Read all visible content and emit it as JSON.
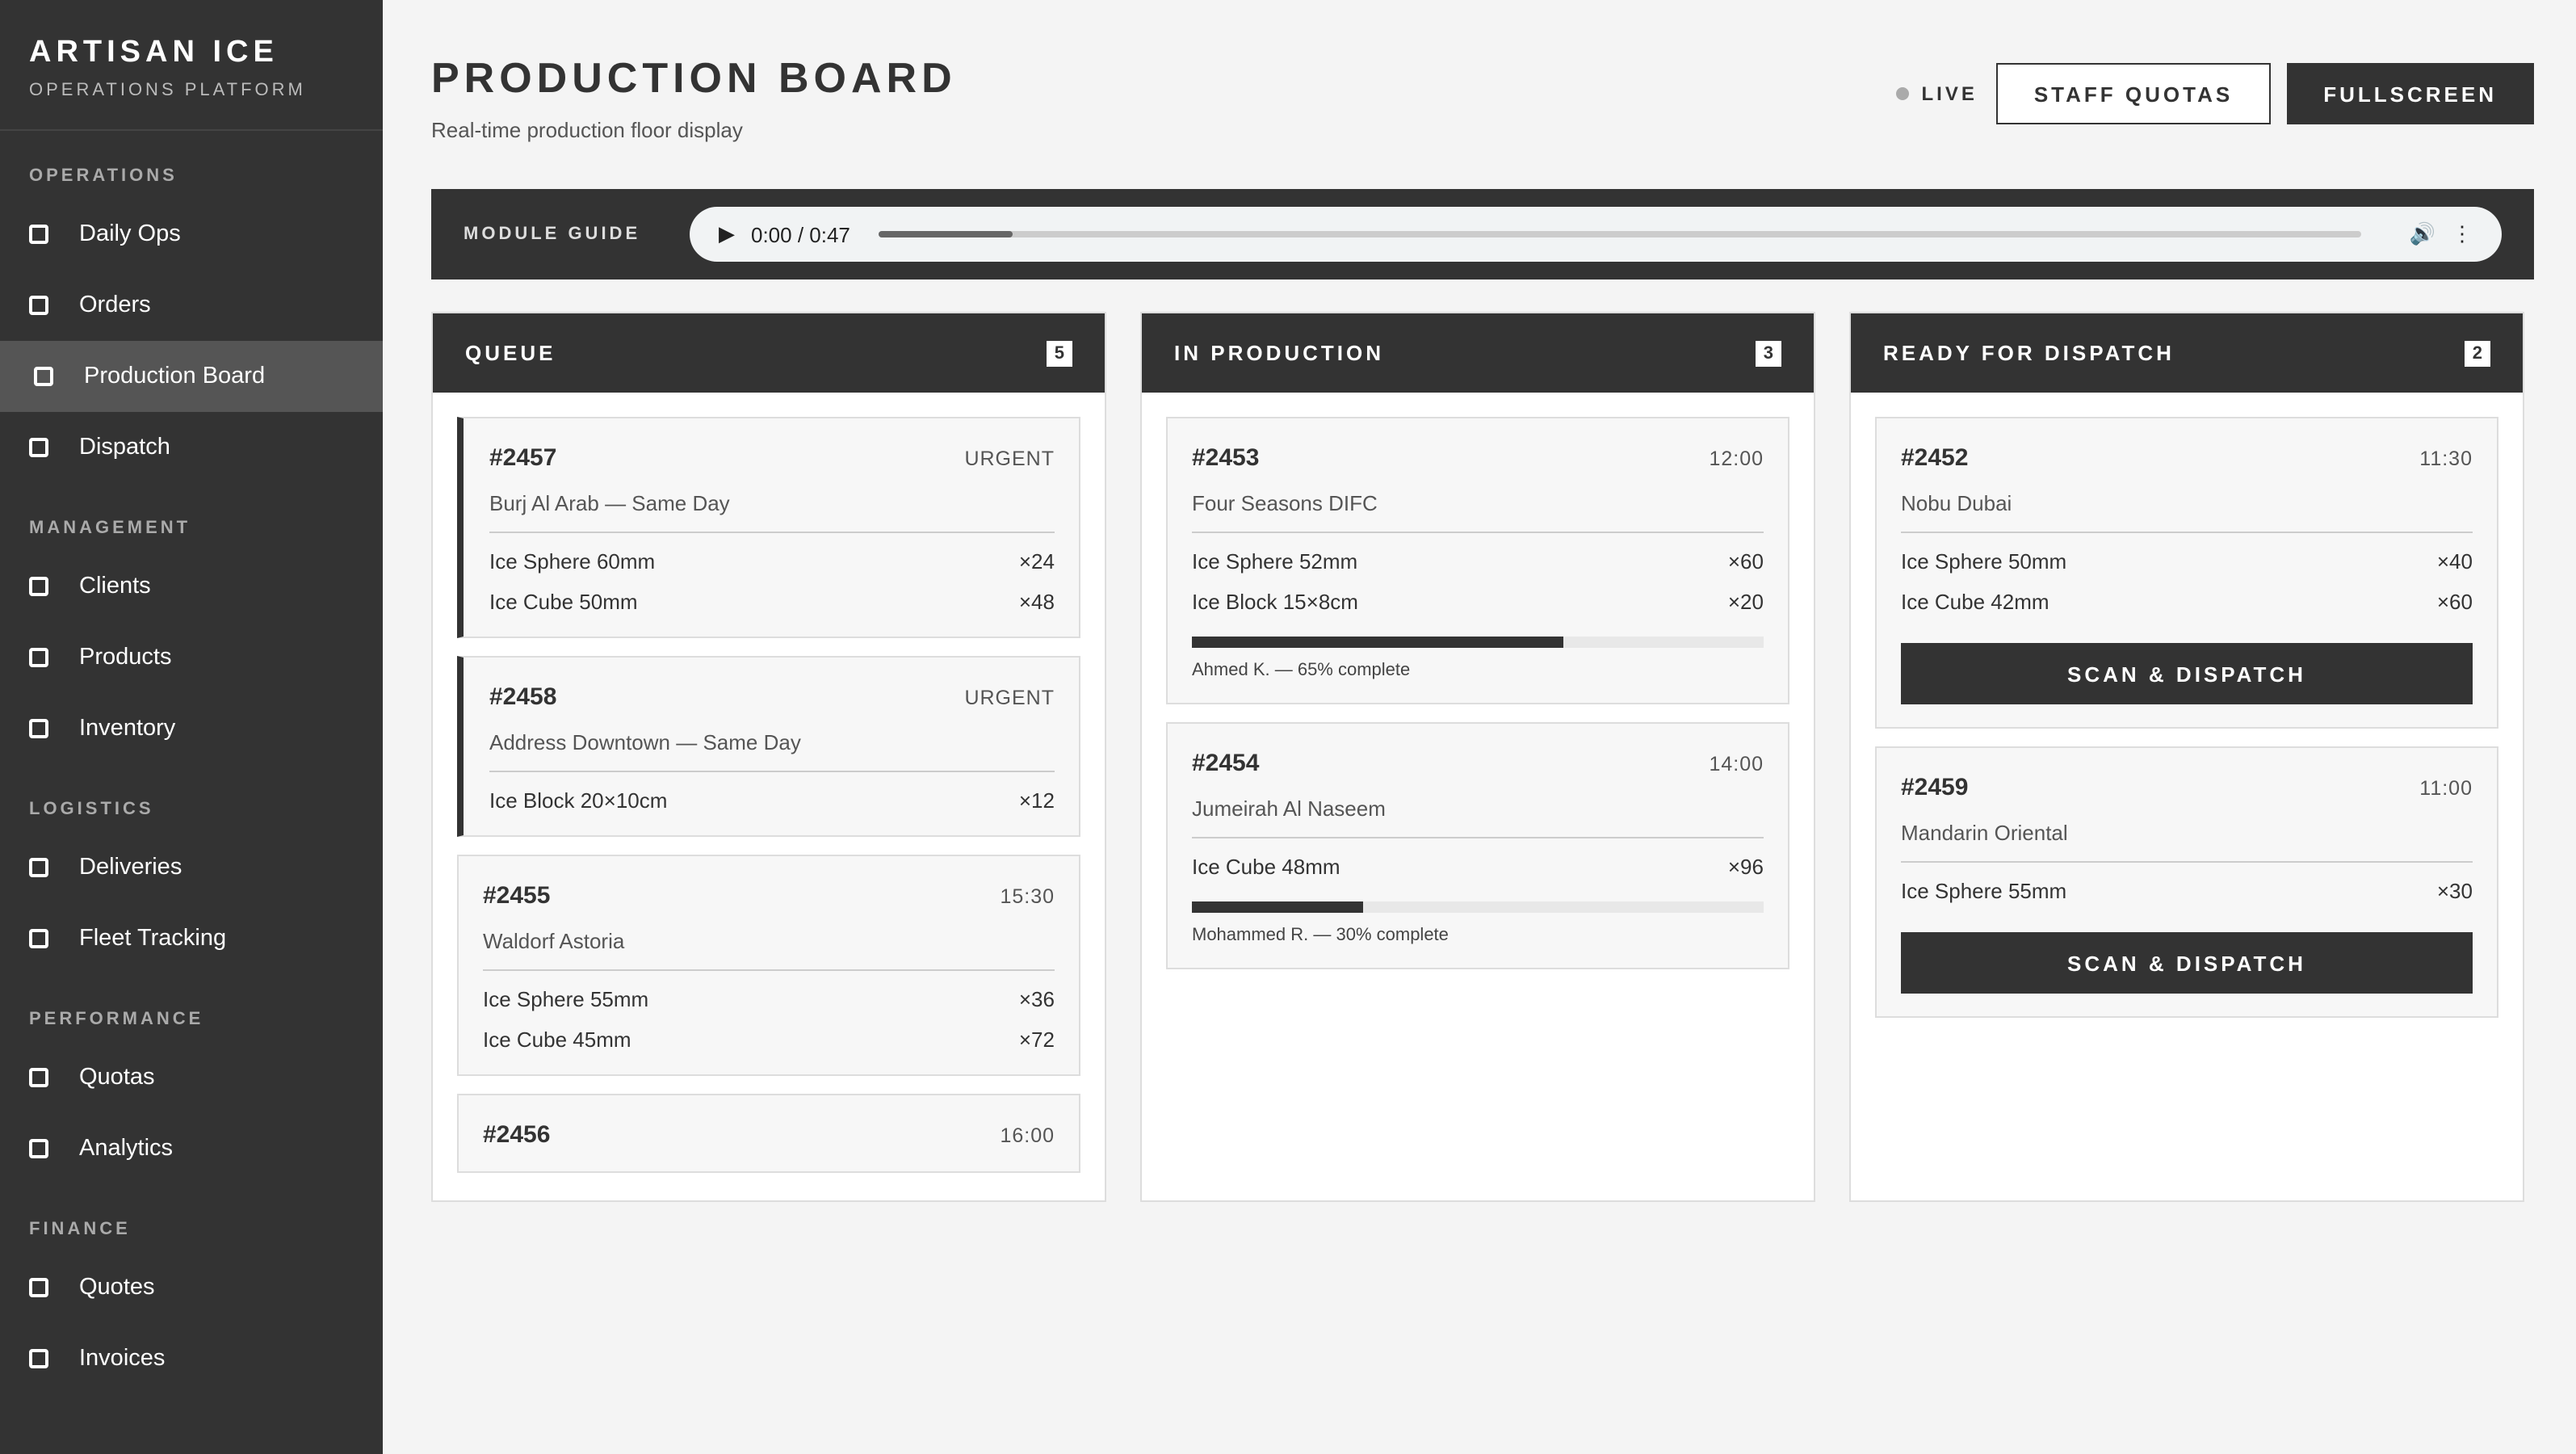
{
  "sidebar": {
    "brand": "ARTISAN ICE",
    "tagline": "OPERATIONS PLATFORM",
    "sections": [
      {
        "title": "OPERATIONS",
        "items": [
          {
            "label": "Daily Ops"
          },
          {
            "label": "Orders"
          },
          {
            "label": "Production Board",
            "active": true
          },
          {
            "label": "Dispatch"
          }
        ]
      },
      {
        "title": "MANAGEMENT",
        "items": [
          {
            "label": "Clients"
          },
          {
            "label": "Products"
          },
          {
            "label": "Inventory"
          }
        ]
      },
      {
        "title": "LOGISTICS",
        "items": [
          {
            "label": "Deliveries"
          },
          {
            "label": "Fleet Tracking"
          }
        ]
      },
      {
        "title": "PERFORMANCE",
        "items": [
          {
            "label": "Quotas"
          },
          {
            "label": "Analytics"
          }
        ]
      },
      {
        "title": "FINANCE",
        "items": [
          {
            "label": "Quotes"
          },
          {
            "label": "Invoices"
          }
        ]
      }
    ]
  },
  "header": {
    "title": "PRODUCTION BOARD",
    "subtitle": "Real-time production floor display",
    "status": "LIVE",
    "buttons": [
      "STAFF QUOTAS",
      "FULLSCREEN"
    ]
  },
  "audio": {
    "label": "MODULE GUIDE",
    "time": "0:00 / 0:47"
  },
  "columns": [
    {
      "title": "QUEUE",
      "count": 5,
      "cards": [
        {
          "id": "#2457",
          "tag": "URGENT",
          "urgent": true,
          "client": "Burj Al Arab — Same Day",
          "items": [
            {
              "name": "Ice Sphere 60mm",
              "qty": "×24"
            },
            {
              "name": "Ice Cube 50mm",
              "qty": "×48"
            }
          ]
        },
        {
          "id": "#2458",
          "tag": "URGENT",
          "urgent": true,
          "client": "Address Downtown — Same Day",
          "items": [
            {
              "name": "Ice Block 20×10cm",
              "qty": "×12"
            }
          ]
        },
        {
          "id": "#2455",
          "tag": "15:30",
          "client": "Waldorf Astoria",
          "items": [
            {
              "name": "Ice Sphere 55mm",
              "qty": "×36"
            },
            {
              "name": "Ice Cube 45mm",
              "qty": "×72"
            }
          ]
        },
        {
          "id": "#2456",
          "tag": "16:00"
        }
      ]
    },
    {
      "title": "IN PRODUCTION",
      "count": 3,
      "cards": [
        {
          "id": "#2453",
          "tag": "12:00",
          "client": "Four Seasons DIFC",
          "items": [
            {
              "name": "Ice Sphere 52mm",
              "qty": "×60"
            },
            {
              "name": "Ice Block 15×8cm",
              "qty": "×20"
            }
          ],
          "progress": {
            "value": 65,
            "label": "Ahmed K. — 65% complete"
          }
        },
        {
          "id": "#2454",
          "tag": "14:00",
          "client": "Jumeirah Al Naseem",
          "items": [
            {
              "name": "Ice Cube 48mm",
              "qty": "×96"
            }
          ],
          "progress": {
            "value": 30,
            "label": "Mohammed R. — 30% complete"
          }
        }
      ]
    },
    {
      "title": "READY FOR DISPATCH",
      "count": 2,
      "cards": [
        {
          "id": "#2452",
          "tag": "11:30",
          "client": "Nobu Dubai",
          "items": [
            {
              "name": "Ice Sphere 50mm",
              "qty": "×40"
            },
            {
              "name": "Ice Cube 42mm",
              "qty": "×60"
            }
          ],
          "action": "SCAN & DISPATCH"
        },
        {
          "id": "#2459",
          "tag": "11:00",
          "client": "Mandarin Oriental",
          "items": [
            {
              "name": "Ice Sphere 55mm",
              "qty": "×30"
            }
          ],
          "action": "SCAN & DISPATCH"
        }
      ]
    }
  ]
}
